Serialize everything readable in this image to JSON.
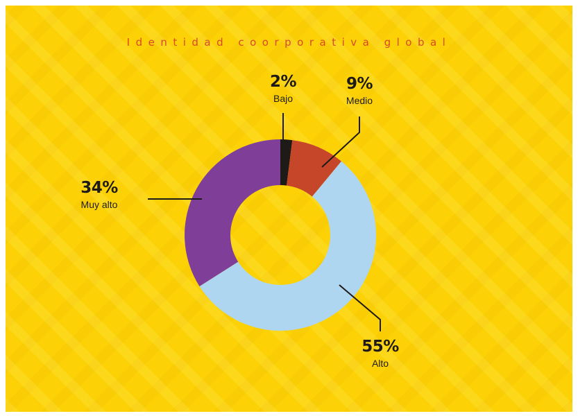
{
  "chart_data": {
    "type": "pie",
    "style": "donut",
    "title": "Identidad coorporativa global",
    "categories": [
      "Bajo",
      "Medio",
      "Alto",
      "Muy alto"
    ],
    "values": [
      2,
      9,
      55,
      34
    ],
    "value_labels": [
      "2%",
      "9%",
      "55%",
      "34%"
    ],
    "colors": [
      "#1e1a17",
      "#c6462a",
      "#aed6f0",
      "#7f3f98"
    ],
    "background_color": "#fcd206",
    "title_color": "#d9482a"
  }
}
